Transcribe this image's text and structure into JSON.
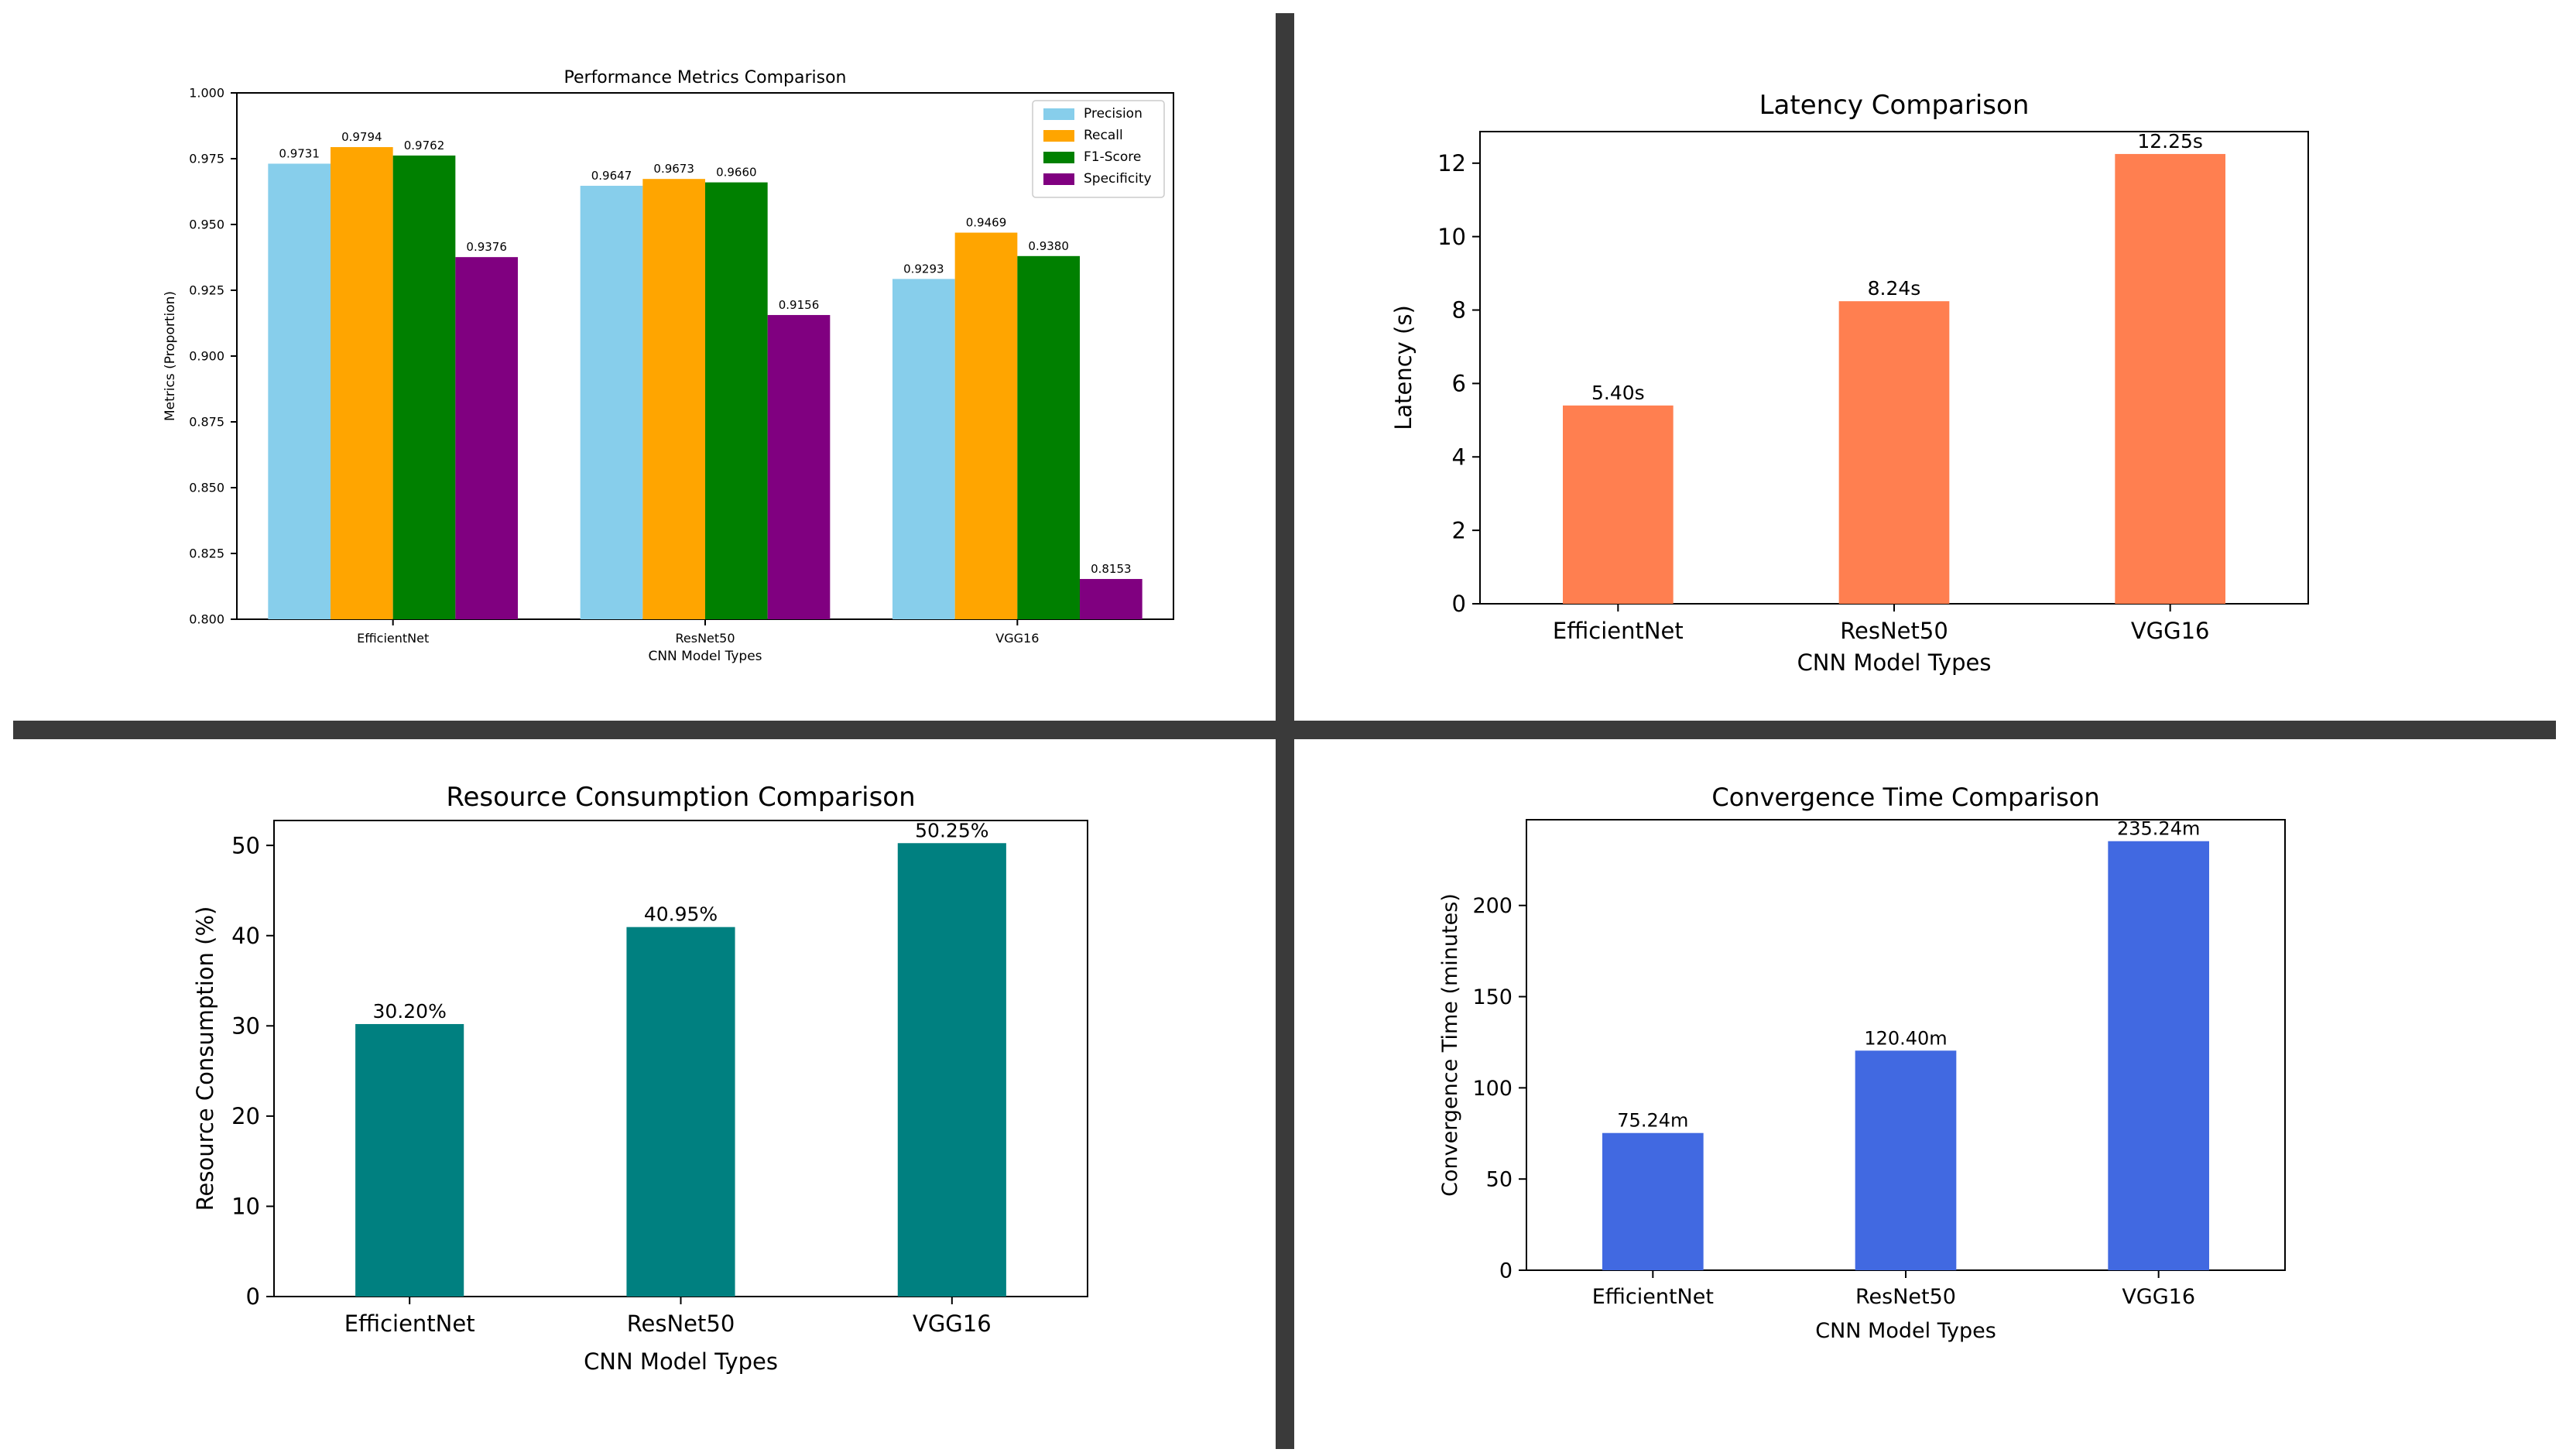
{
  "chart_data": [
    {
      "type": "bar",
      "title": "Performance Metrics Comparison",
      "xlabel": "CNN Model Types",
      "ylabel": "Metrics (Proportion)",
      "categories": [
        "EfficientNet",
        "ResNet50",
        "VGG16"
      ],
      "ylim": [
        0.8,
        1.0
      ],
      "yticks": [
        "0.800",
        "0.825",
        "0.850",
        "0.875",
        "0.900",
        "0.925",
        "0.950",
        "0.975",
        "1.000"
      ],
      "legend_position": "top-right",
      "grid": false,
      "series": [
        {
          "name": "Precision",
          "color": "#87CEEB",
          "values": [
            0.9731,
            0.9647,
            0.9293
          ],
          "labels": [
            "0.9731",
            "0.9647",
            "0.9293"
          ]
        },
        {
          "name": "Recall",
          "color": "#FFA500",
          "values": [
            0.9794,
            0.9673,
            0.9469
          ],
          "labels": [
            "0.9794",
            "0.9673",
            "0.9469"
          ]
        },
        {
          "name": "F1-Score",
          "color": "#008000",
          "values": [
            0.9762,
            0.966,
            0.938
          ],
          "labels": [
            "0.9762",
            "0.9660",
            "0.9380"
          ]
        },
        {
          "name": "Specificity",
          "color": "#800080",
          "values": [
            0.9376,
            0.9156,
            0.8153
          ],
          "labels": [
            "0.9376",
            "0.9156",
            "0.8153"
          ]
        }
      ]
    },
    {
      "type": "bar",
      "title": "Latency Comparison",
      "xlabel": "CNN Model Types",
      "ylabel": "Latency (s)",
      "categories": [
        "EfficientNet",
        "ResNet50",
        "VGG16"
      ],
      "values": [
        5.4,
        8.24,
        12.25
      ],
      "labels": [
        "5.40s",
        "8.24s",
        "12.25s"
      ],
      "ylim": [
        0,
        12.86
      ],
      "yticks": [
        "0",
        "2",
        "4",
        "6",
        "8",
        "10",
        "12"
      ],
      "color": "#FF7F50",
      "grid": false
    },
    {
      "type": "bar",
      "title": "Resource Consumption Comparison",
      "xlabel": "CNN Model Types",
      "ylabel": "Resource Consumption (%)",
      "categories": [
        "EfficientNet",
        "ResNet50",
        "VGG16"
      ],
      "values": [
        30.2,
        40.95,
        50.25
      ],
      "labels": [
        "30.20%",
        "40.95%",
        "50.25%"
      ],
      "ylim": [
        0,
        52.76
      ],
      "yticks": [
        "0",
        "10",
        "20",
        "30",
        "40",
        "50"
      ],
      "color": "#008080",
      "grid": false
    },
    {
      "type": "bar",
      "title": "Convergence Time Comparison",
      "xlabel": "CNN Model Types",
      "ylabel": "Convergence Time (minutes)",
      "categories": [
        "EfficientNet",
        "ResNet50",
        "VGG16"
      ],
      "values": [
        75.24,
        120.4,
        235.24
      ],
      "labels": [
        "75.24m",
        "120.40m",
        "235.24m"
      ],
      "ylim": [
        0,
        247
      ],
      "yticks": [
        "0",
        "50",
        "100",
        "150",
        "200"
      ],
      "color": "#4169E1",
      "grid": false
    }
  ]
}
